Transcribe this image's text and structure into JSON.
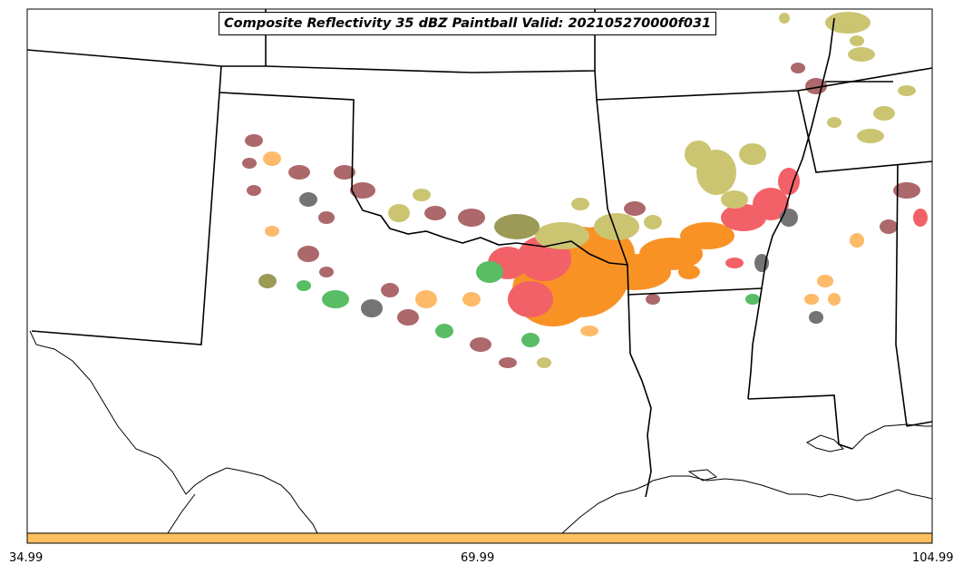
{
  "map": {
    "title": "Composite Reflectivity 35 dBZ Paintball Valid: 202105270000f031",
    "colorbar": {
      "ticks": [
        "34.99",
        "69.99",
        "104.99"
      ],
      "color": "#fdbf5f"
    },
    "palette": {
      "olive": "#c3bc5a",
      "maroon": "#9e4e52",
      "orange": "#f97f00",
      "red": "#f0464e",
      "green": "#3cb24a",
      "gray": "#5c5c5c",
      "light_orange": "#fdae4f",
      "dark_olive": "#8a8a3a"
    }
  }
}
